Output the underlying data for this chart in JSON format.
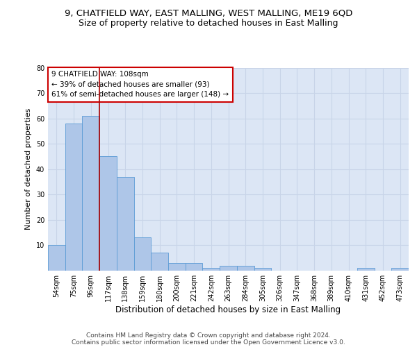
{
  "title_line1": "9, CHATFIELD WAY, EAST MALLING, WEST MALLING, ME19 6QD",
  "title_line2": "Size of property relative to detached houses in East Malling",
  "xlabel": "Distribution of detached houses by size in East Malling",
  "ylabel": "Number of detached properties",
  "categories": [
    "54sqm",
    "75sqm",
    "96sqm",
    "117sqm",
    "138sqm",
    "159sqm",
    "180sqm",
    "200sqm",
    "221sqm",
    "242sqm",
    "263sqm",
    "284sqm",
    "305sqm",
    "326sqm",
    "347sqm",
    "368sqm",
    "389sqm",
    "410sqm",
    "431sqm",
    "452sqm",
    "473sqm"
  ],
  "values": [
    10,
    58,
    61,
    45,
    37,
    13,
    7,
    3,
    3,
    1,
    2,
    2,
    1,
    0,
    0,
    0,
    0,
    0,
    1,
    0,
    1
  ],
  "bar_color": "#aec6e8",
  "bar_edge_color": "#5b9bd5",
  "grid_color": "#c8d4e8",
  "background_color": "#dce6f5",
  "vline_color": "#aa0000",
  "vline_pos": 2.5,
  "annotation_box_text": "9 CHATFIELD WAY: 108sqm\n← 39% of detached houses are smaller (93)\n61% of semi-detached houses are larger (148) →",
  "annotation_box_color": "#cc0000",
  "ylim": [
    0,
    80
  ],
  "yticks": [
    0,
    10,
    20,
    30,
    40,
    50,
    60,
    70,
    80
  ],
  "footer_line1": "Contains HM Land Registry data © Crown copyright and database right 2024.",
  "footer_line2": "Contains public sector information licensed under the Open Government Licence v3.0.",
  "title1_fontsize": 9.5,
  "title2_fontsize": 9,
  "xlabel_fontsize": 8.5,
  "ylabel_fontsize": 8,
  "tick_fontsize": 7,
  "annotation_fontsize": 7.5,
  "footer_fontsize": 6.5
}
